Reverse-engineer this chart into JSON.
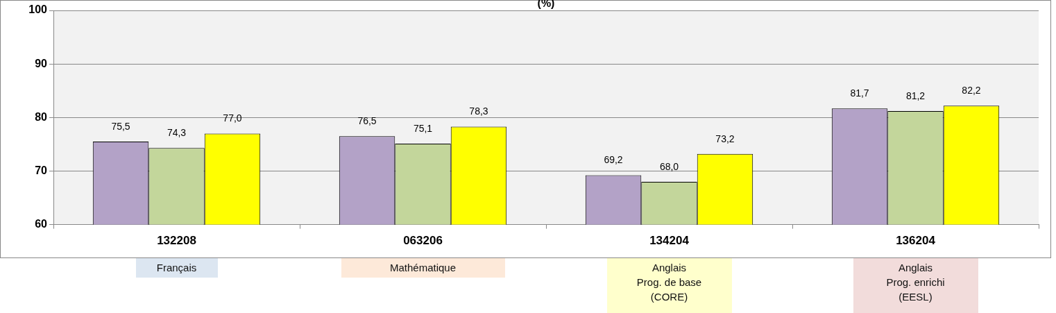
{
  "chart_data": {
    "type": "bar",
    "title": "(%)",
    "categories": [
      "132208",
      "063206",
      "134204",
      "136204"
    ],
    "series": [
      {
        "color": "#b3a2c7",
        "values": [
          75.5,
          76.5,
          69.2,
          81.7
        ],
        "value_labels": [
          "75,5",
          "76,5",
          "69,2",
          "81,7"
        ]
      },
      {
        "color": "#c3d69b",
        "values": [
          74.3,
          75.1,
          68.0,
          81.2
        ],
        "value_labels": [
          "74,3",
          "75,1",
          "68,0",
          "81,2"
        ]
      },
      {
        "color": "#ffff00",
        "values": [
          77.0,
          78.3,
          73.2,
          82.2
        ],
        "value_labels": [
          "77,0",
          "78,3",
          "73,2",
          "82,2"
        ]
      }
    ],
    "ylim": [
      60,
      100
    ],
    "yticks": [
      60,
      70,
      80,
      90,
      100
    ],
    "grid": "y",
    "legend": false,
    "annotations": [
      "Français",
      "Mathématique",
      "Anglais\nProg. de base\n(CORE)",
      "Anglais\nProg. enrichi\n(EESL)"
    ]
  }
}
